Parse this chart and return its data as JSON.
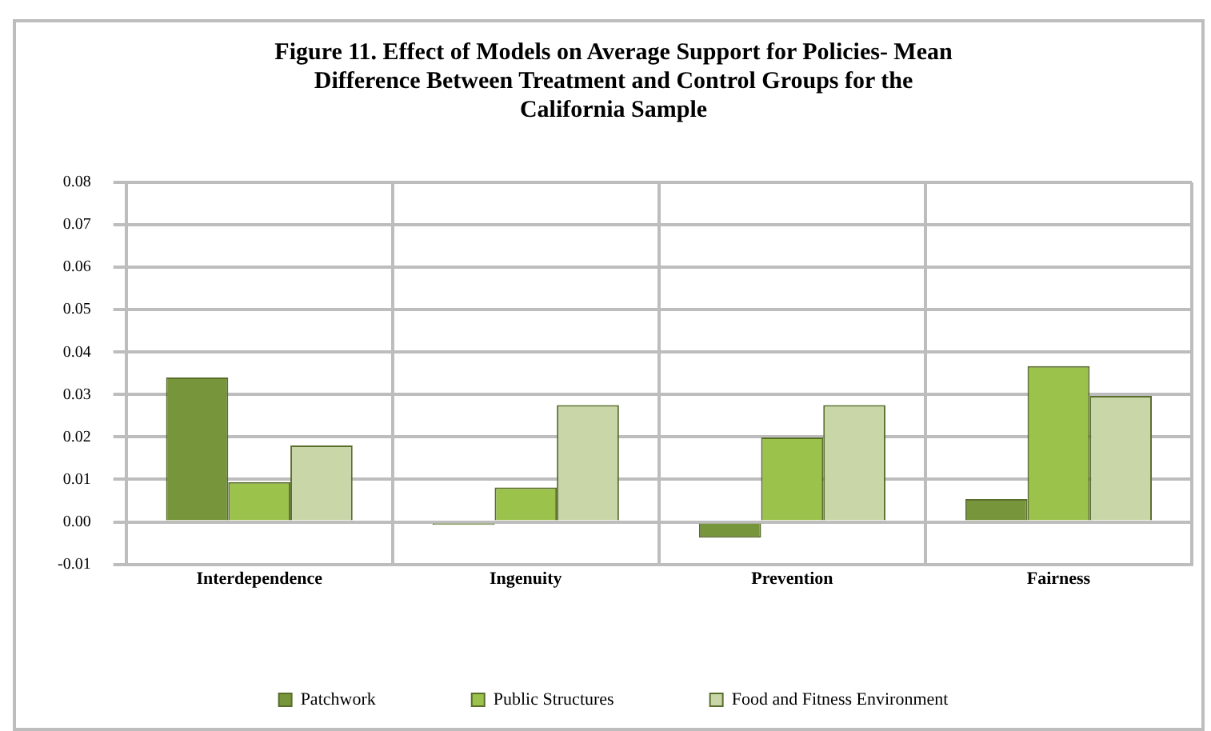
{
  "chart_data": {
    "type": "bar",
    "title": [
      "Figure 11. Effect of Models on Average Support for Policies- Mean",
      "Difference Between Treatment and Control Groups for the",
      "California Sample"
    ],
    "categories": [
      "Interdependence",
      "Ingenuity",
      "Prevention",
      "Fairness"
    ],
    "series": [
      {
        "name": "Patchwork",
        "color": "#77953a",
        "values": [
          0.034,
          -0.0007,
          -0.0037,
          0.0054
        ]
      },
      {
        "name": "Public Structures",
        "color": "#9bc24b",
        "values": [
          0.0094,
          0.0081,
          0.0199,
          0.0367
        ]
      },
      {
        "name": "Food and Fitness Environment",
        "color": "#c8d6a8",
        "values": [
          0.018,
          0.0275,
          0.0275,
          0.0297
        ]
      }
    ],
    "ylim": [
      -0.01,
      0.08
    ],
    "yticks": [
      {
        "value": -0.01,
        "label": "-0.01"
      },
      {
        "value": 0,
        "label": "0.00"
      },
      {
        "value": 0.01,
        "label": "0.01"
      },
      {
        "value": 0.02,
        "label": "0.02"
      },
      {
        "value": 0.03,
        "label": "0.03"
      },
      {
        "value": 0.04,
        "label": "0.04"
      },
      {
        "value": 0.05,
        "label": "0.05"
      },
      {
        "value": 0.06,
        "label": "0.06"
      },
      {
        "value": 0.07,
        "label": "0.07"
      },
      {
        "value": 0.08,
        "label": "0.08"
      }
    ],
    "grid": true,
    "legend": "bottom"
  }
}
